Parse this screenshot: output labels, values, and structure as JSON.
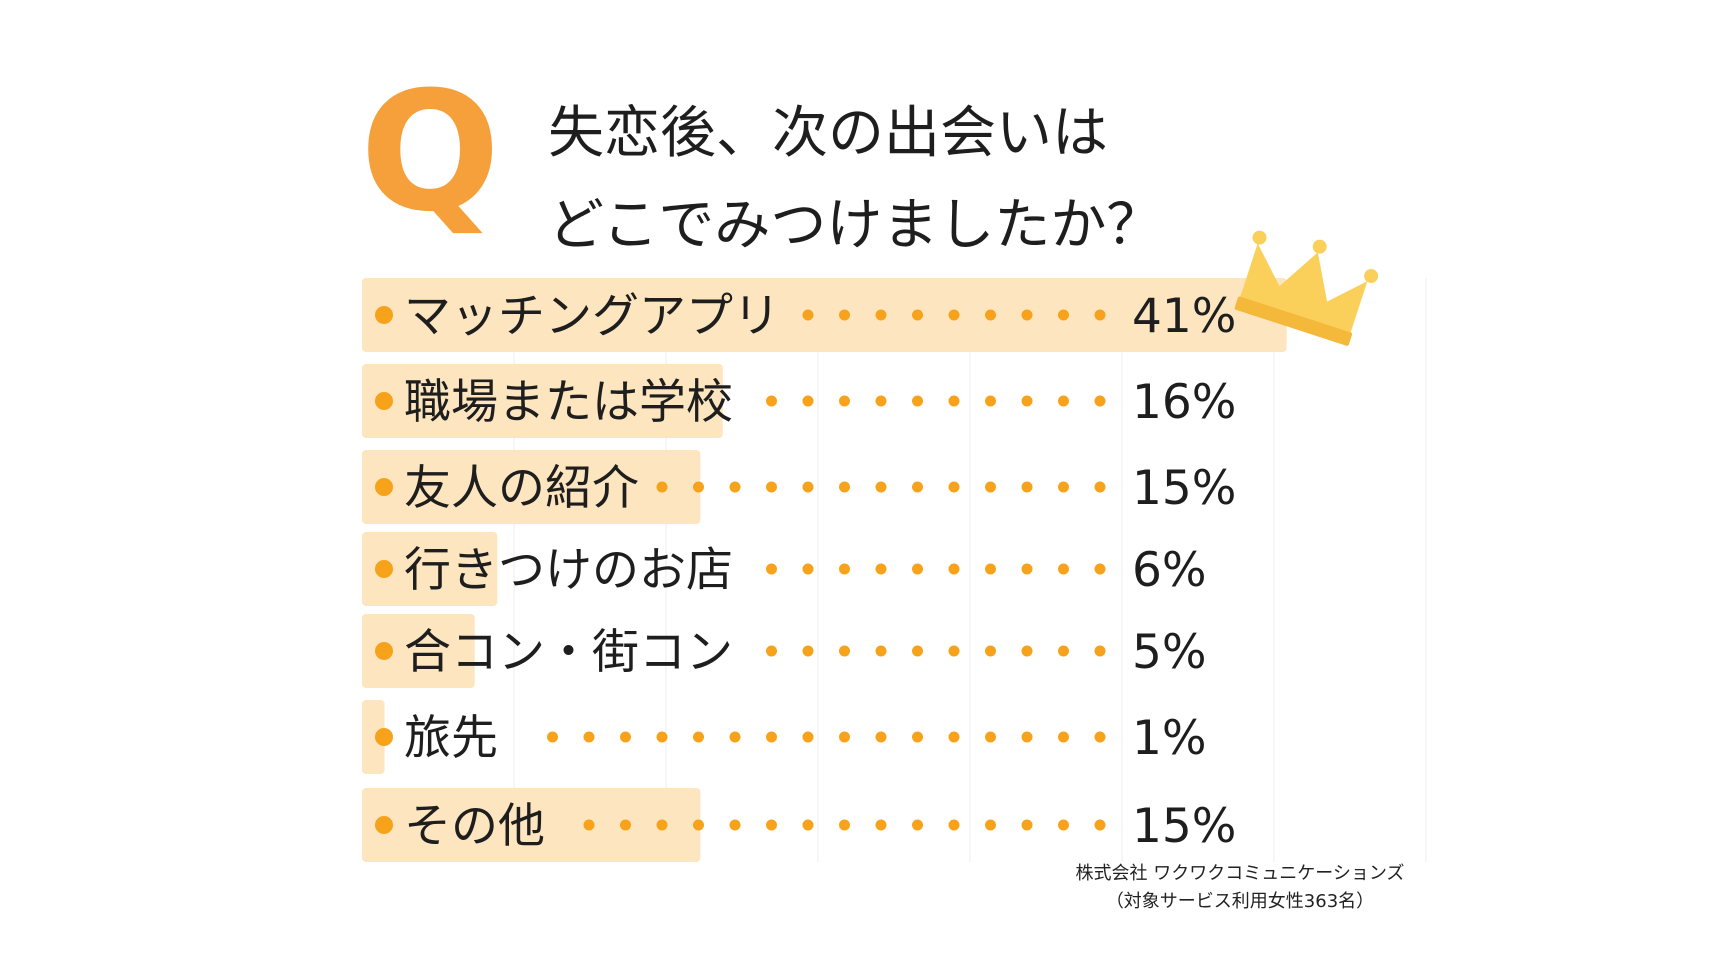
{
  "question": {
    "mark": "Q",
    "lines": [
      "失恋後、次の出会いは",
      "どこでみつけましたか？"
    ]
  },
  "source": {
    "company": "株式会社 ワクワクコミュニケーションズ",
    "note": "（対象サービス利用女性363名）"
  },
  "colors": {
    "accent": "#f5a03a",
    "bar": "#fde6bf",
    "dot": "#f7a21b",
    "crown": "#fbd05a",
    "grid": "#eeeeee"
  },
  "chart_data": {
    "type": "bar",
    "orientation": "horizontal",
    "categories": [
      "マッチングアプリ",
      "職場または学校",
      "友人の紹介",
      "行きつけのお店",
      "合コン・街コン",
      "旅先",
      "その他"
    ],
    "values": [
      41,
      16,
      15,
      6,
      5,
      1,
      15
    ],
    "value_labels": [
      "41%",
      "16%",
      "15%",
      "6%",
      "5%",
      "1%",
      "15%"
    ],
    "xlim": [
      0,
      47
    ],
    "grid": true,
    "highlight_icon": "crown-icon"
  }
}
